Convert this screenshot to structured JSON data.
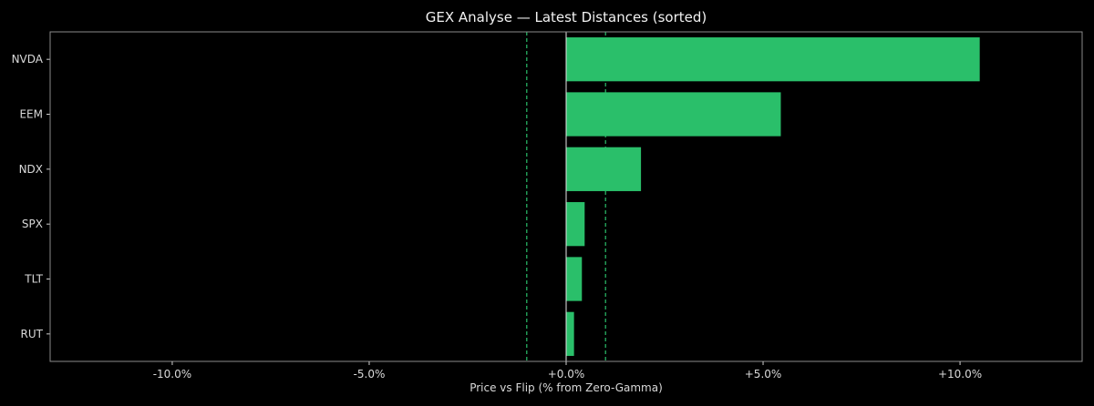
{
  "chart_data": {
    "type": "bar",
    "orientation": "horizontal",
    "title": "GEX Analyse — Latest Distances (sorted)",
    "xlabel": "Price vs Flip (% from Zero-Gamma)",
    "ylabel": "",
    "categories": [
      "NVDA",
      "EEM",
      "NDX",
      "SPX",
      "TLT",
      "RUT"
    ],
    "values": [
      10.5,
      5.45,
      1.9,
      0.47,
      0.4,
      0.2
    ],
    "xlim": [
      -13.1,
      13.1
    ],
    "xticks": [
      -10,
      -5,
      0,
      5,
      10
    ],
    "xtick_labels": [
      "-10.0%",
      "-5.0%",
      "+0.0%",
      "+5.0%",
      "+10.0%"
    ],
    "reference_lines": [
      {
        "x": 0,
        "style": "solid",
        "color": "#e6e6e6"
      },
      {
        "x": -1,
        "style": "dashed",
        "color": "#2bbf6a"
      },
      {
        "x": 1,
        "style": "dashed",
        "color": "#2bbf6a"
      }
    ],
    "grid": false,
    "legend": "none",
    "bar_color": "#2abf6a",
    "background": "#000000"
  }
}
